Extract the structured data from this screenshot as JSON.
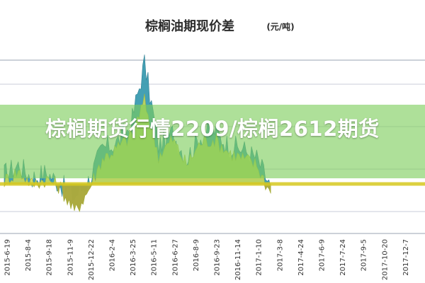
{
  "chart_data": {
    "type": "area",
    "title": "棕榈油期现价差",
    "unit": "(元/吨)",
    "xlabel": "",
    "ylabel": "",
    "grid": true,
    "x": [
      "2015-6-19",
      "2015-8-4",
      "2015-9-18",
      "2015-11-9",
      "2015-12-22",
      "2016-2-4",
      "2016-3-25",
      "2016-5-11",
      "2016-6-27",
      "2016-8-9",
      "2016-9-23",
      "2016-11-14",
      "2017-1-10",
      "2017-3-8",
      "2017-4-24",
      "2017-6-9",
      "2017-7-24",
      "2017-9-5",
      "2017-10-20",
      "2017-12-7"
    ],
    "series": [
      {
        "values": [
          15,
          30,
          10,
          18,
          0,
          -20,
          5,
          55,
          65,
          90,
          190,
          60,
          80,
          40,
          75,
          85,
          60,
          55,
          40,
          -5
        ]
      },
      {
        "values": [
          5,
          20,
          0,
          8,
          -5,
          -45,
          -10,
          40,
          55,
          75,
          130,
          45,
          70,
          30,
          65,
          70,
          50,
          40,
          30,
          -15
        ]
      }
    ],
    "colors": {
      "series_a": "#3a9bb0",
      "series_b": "#c8d85a",
      "zero_line": "#d6c81e",
      "negative_fill": "#a6a23a"
    }
  },
  "overlay": {
    "headline": "棕榈期货行情2209/棕榈2612期货"
  }
}
